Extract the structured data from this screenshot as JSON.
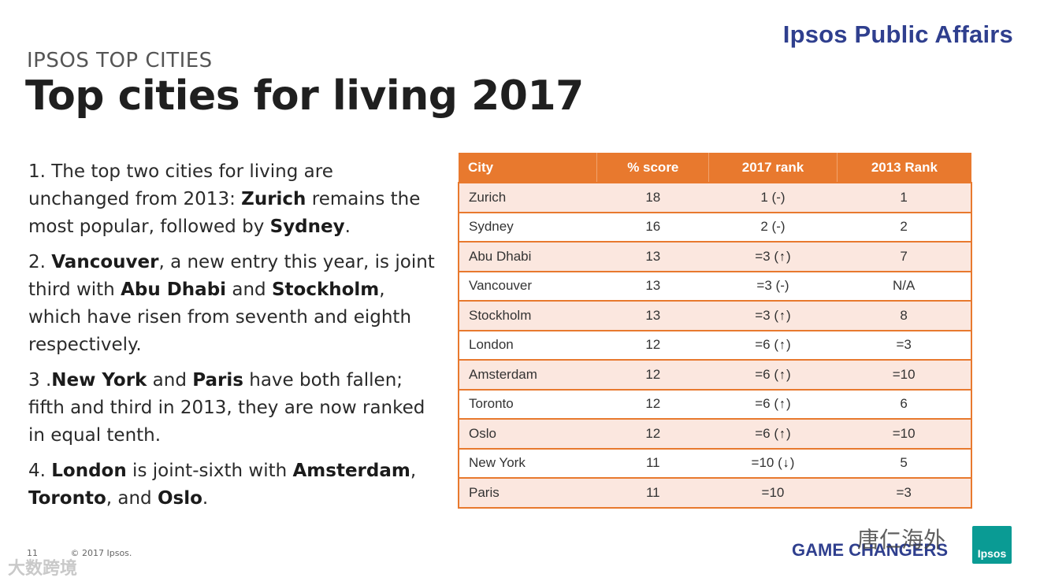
{
  "brand": "Ipsos Public Affairs",
  "kicker": "IPSOS TOP CITIES",
  "title": "Top cities for living 2017",
  "paragraphs": [
    [
      {
        "t": "1. The top two cities for living are unchanged from 2013: "
      },
      {
        "t": "Zurich",
        "b": true
      },
      {
        "t": " remains the most popular, followed by "
      },
      {
        "t": "Sydney",
        "b": true
      },
      {
        "t": "."
      }
    ],
    [
      {
        "t": "2. "
      },
      {
        "t": "Vancouver",
        "b": true
      },
      {
        "t": ", a new entry this year, is joint third with "
      },
      {
        "t": "Abu Dhabi",
        "b": true
      },
      {
        "t": " and "
      },
      {
        "t": "Stockholm",
        "b": true
      },
      {
        "t": ", which have risen from seventh and eighth respectively."
      }
    ],
    [
      {
        "t": "3 ."
      },
      {
        "t": "New York",
        "b": true
      },
      {
        "t": " and "
      },
      {
        "t": "Paris",
        "b": true
      },
      {
        "t": " have both fallen; fifth and third in 2013, they are now ranked in equal tenth."
      }
    ],
    [
      {
        "t": "4. "
      },
      {
        "t": "London",
        "b": true
      },
      {
        "t": " is joint-sixth with "
      },
      {
        "t": "Amsterdam",
        "b": true
      },
      {
        "t": ", "
      },
      {
        "t": "Toronto",
        "b": true
      },
      {
        "t": ", and "
      },
      {
        "t": "Oslo",
        "b": true
      },
      {
        "t": "."
      }
    ]
  ],
  "table": {
    "headers": [
      "City",
      "% score",
      "2017 rank",
      "2013 Rank"
    ],
    "rows": [
      {
        "city": "Zurich",
        "score": "18",
        "rank2017": "1 (-)",
        "arrow": "",
        "rank2013": "1"
      },
      {
        "city": "Sydney",
        "score": "16",
        "rank2017": "2 (-)",
        "arrow": "",
        "rank2013": "2"
      },
      {
        "city": "Abu Dhabi",
        "score": "13",
        "rank2017": "=3",
        "arrow": "up",
        "rank2013": "7"
      },
      {
        "city": "Vancouver",
        "score": "13",
        "rank2017": "=3 (-)",
        "arrow": "",
        "rank2013": "N/A"
      },
      {
        "city": "Stockholm",
        "score": "13",
        "rank2017": "=3",
        "arrow": "up",
        "rank2013": "8"
      },
      {
        "city": "London",
        "score": "12",
        "rank2017": "=6",
        "arrow": "up",
        "rank2013": "=3"
      },
      {
        "city": "Amsterdam",
        "score": "12",
        "rank2017": "=6",
        "arrow": "up",
        "rank2013": "=10"
      },
      {
        "city": "Toronto",
        "score": "12",
        "rank2017": "=6",
        "arrow": "up",
        "rank2013": "6"
      },
      {
        "city": "Oslo",
        "score": "12",
        "rank2017": "=6",
        "arrow": "up",
        "rank2013": "=10"
      },
      {
        "city": "New York",
        "score": "11",
        "rank2017": "=10",
        "arrow": "down",
        "rank2013": "5"
      },
      {
        "city": "Paris",
        "score": "11",
        "rank2017": "=10",
        "arrow": "",
        "rank2013": "=3"
      }
    ]
  },
  "footer": {
    "page": "11",
    "copyright": "© 2017 Ipsos.",
    "tagline": "GAME CHANGERS",
    "logo": "Ipsos"
  },
  "watermarks": {
    "left": "大数跨境",
    "right": "唐仁海外"
  },
  "colors": {
    "accent": "#e8792e",
    "brand": "#2f3f8e",
    "row_tint": "#fbe7df"
  }
}
